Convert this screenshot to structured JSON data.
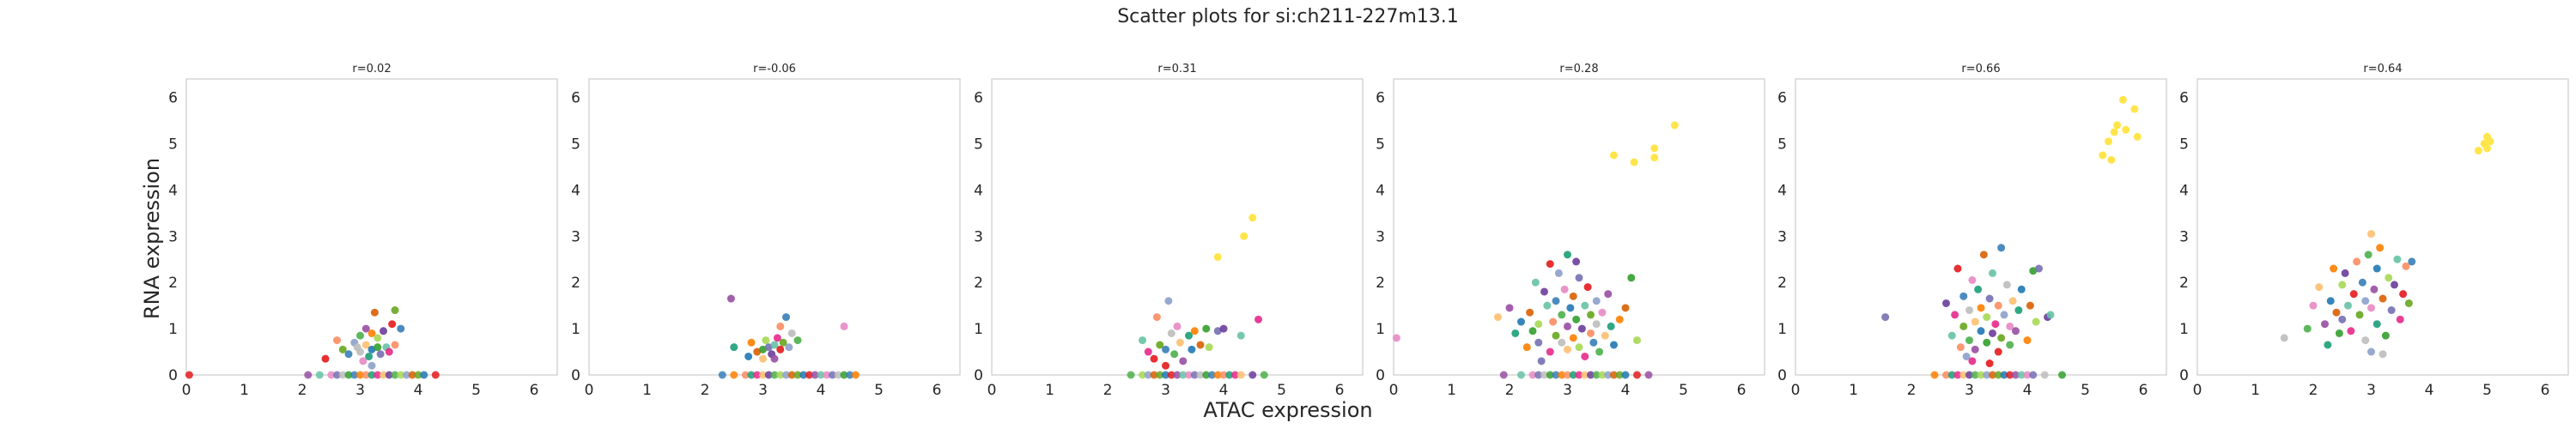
{
  "chart_data": {
    "type": "scatter",
    "title": "Scatter plots for si:ch211-227m13.1",
    "xlabel": "ATAC expression",
    "ylabel": "RNA expression",
    "xlim": [
      0,
      6.4
    ],
    "ylim": [
      0,
      6.4
    ],
    "x_ticks": [
      "0",
      "1",
      "2",
      "3",
      "4",
      "5",
      "6"
    ],
    "y_ticks": [
      "0",
      "1",
      "2",
      "3",
      "4",
      "5",
      "6"
    ],
    "grid": false,
    "legend": "none",
    "palette": [
      "#e41a1c",
      "#377eb8",
      "#4daf4a",
      "#984ea3",
      "#ff7f00",
      "#a6d854",
      "#66c2a5",
      "#fc8d62",
      "#8da0cb",
      "#e78ac3",
      "#1b9e77",
      "#d95f02",
      "#7570b3",
      "#e7298a",
      "#66a61e",
      "#bdbdbd",
      "#fdbf6f",
      "#1f78b4",
      "#33a02c",
      "#6a3d9a"
    ],
    "highlight_color": "#ffe54a",
    "panels": [
      {
        "title": "r=0.02",
        "points": [
          [
            2.4,
            0.35
          ],
          [
            2.6,
            0.75
          ],
          [
            2.7,
            0.55
          ],
          [
            2.8,
            0.45
          ],
          [
            2.9,
            0.7
          ],
          [
            3.0,
            0.5
          ],
          [
            3.0,
            0.85
          ],
          [
            3.05,
            0.3
          ],
          [
            3.1,
            0.65
          ],
          [
            3.1,
            1.0
          ],
          [
            3.15,
            0.4
          ],
          [
            3.2,
            0.55
          ],
          [
            3.2,
            0.9
          ],
          [
            3.25,
            1.35
          ],
          [
            3.3,
            0.6
          ],
          [
            3.3,
            0.8
          ],
          [
            3.35,
            0.45
          ],
          [
            3.4,
            0.95
          ],
          [
            3.45,
            0.6
          ],
          [
            3.5,
            0.5
          ],
          [
            3.55,
            1.1
          ],
          [
            3.6,
            0.65
          ],
          [
            3.6,
            1.4
          ],
          [
            3.7,
            1.0
          ],
          [
            3.2,
            0.2
          ],
          [
            2.95,
            0.6
          ]
        ],
        "zeros": [
          0.05,
          2.1,
          2.3,
          2.5,
          2.6,
          2.7,
          2.8,
          2.9,
          3.0,
          3.1,
          3.2,
          3.3,
          3.4,
          3.5,
          3.6,
          3.7,
          3.8,
          3.9,
          4.0,
          4.1,
          4.3
        ],
        "highlight": []
      },
      {
        "title": "r=-0.06",
        "points": [
          [
            2.45,
            1.65
          ],
          [
            2.5,
            0.6
          ],
          [
            2.75,
            0.4
          ],
          [
            2.8,
            0.7
          ],
          [
            2.9,
            0.5
          ],
          [
            3.0,
            0.55
          ],
          [
            3.05,
            0.75
          ],
          [
            3.1,
            0.6
          ],
          [
            3.15,
            0.45
          ],
          [
            3.2,
            0.65
          ],
          [
            3.25,
            0.8
          ],
          [
            3.3,
            0.55
          ],
          [
            3.3,
            1.05
          ],
          [
            3.35,
            0.7
          ],
          [
            3.4,
            1.25
          ],
          [
            3.45,
            0.6
          ],
          [
            3.5,
            0.9
          ],
          [
            3.6,
            0.75
          ],
          [
            4.4,
            1.05
          ],
          [
            3.0,
            0.35
          ],
          [
            3.2,
            0.35
          ]
        ],
        "zeros": [
          2.3,
          2.5,
          2.7,
          2.8,
          2.9,
          3.0,
          3.1,
          3.2,
          3.3,
          3.4,
          3.5,
          3.6,
          3.7,
          3.8,
          3.9,
          4.0,
          4.1,
          4.2,
          4.3,
          4.4,
          4.5,
          4.6
        ],
        "highlight": []
      },
      {
        "title": "r=0.31",
        "points": [
          [
            2.6,
            0.75
          ],
          [
            2.7,
            0.5
          ],
          [
            2.8,
            0.35
          ],
          [
            2.85,
            1.25
          ],
          [
            2.9,
            0.65
          ],
          [
            3.0,
            0.55
          ],
          [
            3.05,
            1.6
          ],
          [
            3.1,
            0.9
          ],
          [
            3.15,
            0.45
          ],
          [
            3.2,
            1.05
          ],
          [
            3.25,
            0.7
          ],
          [
            3.3,
            0.3
          ],
          [
            3.4,
            0.85
          ],
          [
            3.45,
            0.55
          ],
          [
            3.5,
            0.95
          ],
          [
            3.6,
            0.65
          ],
          [
            3.7,
            1.0
          ],
          [
            3.75,
            0.6
          ],
          [
            3.9,
            0.95
          ],
          [
            4.0,
            1.0
          ],
          [
            4.3,
            0.85
          ],
          [
            4.6,
            1.2
          ],
          [
            3.0,
            0.2
          ]
        ],
        "zeros": [
          2.4,
          2.6,
          2.7,
          2.8,
          2.9,
          3.0,
          3.1,
          3.2,
          3.3,
          3.4,
          3.5,
          3.6,
          3.7,
          3.8,
          3.9,
          4.0,
          4.1,
          4.2,
          4.3,
          4.5,
          4.7
        ],
        "highlight": [
          [
            3.9,
            2.55
          ],
          [
            4.35,
            3.0
          ],
          [
            4.5,
            3.4
          ]
        ]
      },
      {
        "title": "r=0.28",
        "points": [
          [
            0.05,
            0.8
          ],
          [
            1.8,
            1.25
          ],
          [
            2.0,
            1.45
          ],
          [
            2.1,
            0.9
          ],
          [
            2.2,
            1.15
          ],
          [
            2.3,
            0.6
          ],
          [
            2.35,
            1.35
          ],
          [
            2.4,
            0.95
          ],
          [
            2.5,
            1.1
          ],
          [
            2.5,
            0.7
          ],
          [
            2.6,
            1.8
          ],
          [
            2.65,
            1.5
          ],
          [
            2.7,
            0.5
          ],
          [
            2.7,
            2.4
          ],
          [
            2.75,
            1.15
          ],
          [
            2.8,
            0.85
          ],
          [
            2.8,
            1.6
          ],
          [
            2.85,
            2.2
          ],
          [
            2.9,
            0.7
          ],
          [
            2.9,
            1.3
          ],
          [
            2.95,
            1.85
          ],
          [
            3.0,
            0.55
          ],
          [
            3.0,
            1.05
          ],
          [
            3.0,
            2.6
          ],
          [
            3.05,
            1.45
          ],
          [
            3.1,
            0.8
          ],
          [
            3.1,
            1.7
          ],
          [
            3.15,
            1.2
          ],
          [
            3.2,
            0.6
          ],
          [
            3.2,
            2.1
          ],
          [
            3.25,
            1.0
          ],
          [
            3.3,
            1.5
          ],
          [
            3.3,
            0.4
          ],
          [
            3.35,
            1.9
          ],
          [
            3.4,
            0.9
          ],
          [
            3.4,
            1.3
          ],
          [
            3.45,
            0.7
          ],
          [
            3.5,
            1.6
          ],
          [
            3.5,
            1.1
          ],
          [
            3.55,
            0.5
          ],
          [
            3.6,
            1.35
          ],
          [
            3.65,
            0.85
          ],
          [
            3.7,
            1.75
          ],
          [
            3.75,
            1.05
          ],
          [
            3.8,
            0.65
          ],
          [
            3.9,
            1.2
          ],
          [
            4.0,
            1.45
          ],
          [
            4.1,
            2.1
          ],
          [
            4.2,
            0.75
          ],
          [
            2.55,
            0.3
          ],
          [
            3.15,
            2.45
          ],
          [
            2.45,
            2.0
          ]
        ],
        "zeros": [
          1.9,
          2.2,
          2.4,
          2.5,
          2.6,
          2.7,
          2.8,
          2.9,
          3.0,
          3.1,
          3.2,
          3.3,
          3.4,
          3.5,
          3.6,
          3.7,
          3.8,
          3.9,
          4.0,
          4.2,
          4.4
        ],
        "highlight": [
          [
            3.8,
            4.75
          ],
          [
            4.15,
            4.6
          ],
          [
            4.5,
            4.7
          ],
          [
            4.5,
            4.9
          ],
          [
            4.85,
            5.4
          ]
        ]
      },
      {
        "title": "r=0.66",
        "points": [
          [
            1.55,
            1.25
          ],
          [
            2.6,
            1.55
          ],
          [
            2.7,
            0.85
          ],
          [
            2.75,
            1.3
          ],
          [
            2.8,
            2.3
          ],
          [
            2.85,
            0.6
          ],
          [
            2.9,
            1.05
          ],
          [
            2.9,
            1.7
          ],
          [
            2.95,
            0.4
          ],
          [
            3.0,
            1.4
          ],
          [
            3.0,
            0.75
          ],
          [
            3.05,
            2.05
          ],
          [
            3.1,
            1.15
          ],
          [
            3.1,
            0.55
          ],
          [
            3.15,
            1.85
          ],
          [
            3.2,
            0.95
          ],
          [
            3.2,
            1.45
          ],
          [
            3.25,
            2.6
          ],
          [
            3.3,
            0.7
          ],
          [
            3.3,
            1.25
          ],
          [
            3.35,
            1.65
          ],
          [
            3.4,
            0.9
          ],
          [
            3.4,
            2.2
          ],
          [
            3.45,
            1.1
          ],
          [
            3.5,
            0.5
          ],
          [
            3.5,
            1.5
          ],
          [
            3.55,
            0.8
          ],
          [
            3.55,
            2.75
          ],
          [
            3.6,
            1.3
          ],
          [
            3.65,
            1.95
          ],
          [
            3.7,
            0.65
          ],
          [
            3.7,
            1.05
          ],
          [
            3.75,
            1.6
          ],
          [
            3.8,
            0.95
          ],
          [
            3.85,
            1.4
          ],
          [
            3.9,
            1.85
          ],
          [
            4.0,
            0.75
          ],
          [
            4.05,
            1.5
          ],
          [
            4.1,
            2.25
          ],
          [
            4.15,
            1.15
          ],
          [
            4.2,
            2.3
          ],
          [
            4.35,
            1.25
          ],
          [
            4.4,
            1.3
          ],
          [
            3.05,
            0.3
          ],
          [
            3.35,
            0.25
          ]
        ],
        "zeros": [
          2.4,
          2.6,
          2.7,
          2.8,
          2.9,
          3.0,
          3.1,
          3.2,
          3.3,
          3.4,
          3.5,
          3.6,
          3.7,
          3.8,
          3.9,
          4.0,
          4.1,
          4.3,
          4.6
        ],
        "highlight": [
          [
            5.3,
            4.75
          ],
          [
            5.4,
            5.05
          ],
          [
            5.45,
            4.65
          ],
          [
            5.5,
            5.25
          ],
          [
            5.55,
            5.4
          ],
          [
            5.65,
            5.95
          ],
          [
            5.7,
            5.3
          ],
          [
            5.85,
            5.75
          ],
          [
            5.9,
            5.15
          ]
        ]
      },
      {
        "title": "r=0.64",
        "points": [
          [
            1.5,
            0.8
          ],
          [
            1.9,
            1.0
          ],
          [
            2.0,
            1.5
          ],
          [
            2.1,
            1.9
          ],
          [
            2.2,
            1.1
          ],
          [
            2.25,
            0.65
          ],
          [
            2.3,
            1.6
          ],
          [
            2.35,
            2.3
          ],
          [
            2.4,
            1.35
          ],
          [
            2.45,
            0.9
          ],
          [
            2.5,
            1.95
          ],
          [
            2.5,
            1.2
          ],
          [
            2.55,
            2.2
          ],
          [
            2.6,
            1.5
          ],
          [
            2.65,
            0.95
          ],
          [
            2.7,
            1.75
          ],
          [
            2.75,
            2.45
          ],
          [
            2.8,
            1.3
          ],
          [
            2.85,
            2.0
          ],
          [
            2.9,
            1.6
          ],
          [
            2.9,
            0.75
          ],
          [
            2.95,
            2.6
          ],
          [
            3.0,
            1.45
          ],
          [
            3.0,
            3.05
          ],
          [
            3.05,
            1.85
          ],
          [
            3.1,
            1.1
          ],
          [
            3.1,
            2.3
          ],
          [
            3.15,
            2.75
          ],
          [
            3.2,
            1.65
          ],
          [
            3.25,
            0.85
          ],
          [
            3.3,
            2.1
          ],
          [
            3.35,
            1.4
          ],
          [
            3.4,
            1.95
          ],
          [
            3.45,
            2.5
          ],
          [
            3.5,
            1.2
          ],
          [
            3.55,
            1.75
          ],
          [
            3.6,
            2.35
          ],
          [
            3.65,
            1.55
          ],
          [
            3.7,
            2.45
          ],
          [
            3.0,
            0.5
          ],
          [
            3.2,
            0.45
          ]
        ],
        "zeros": [],
        "highlight": [
          [
            4.85,
            4.85
          ],
          [
            4.95,
            5.0
          ],
          [
            5.0,
            4.9
          ],
          [
            5.0,
            5.15
          ],
          [
            5.05,
            5.05
          ]
        ]
      }
    ]
  }
}
